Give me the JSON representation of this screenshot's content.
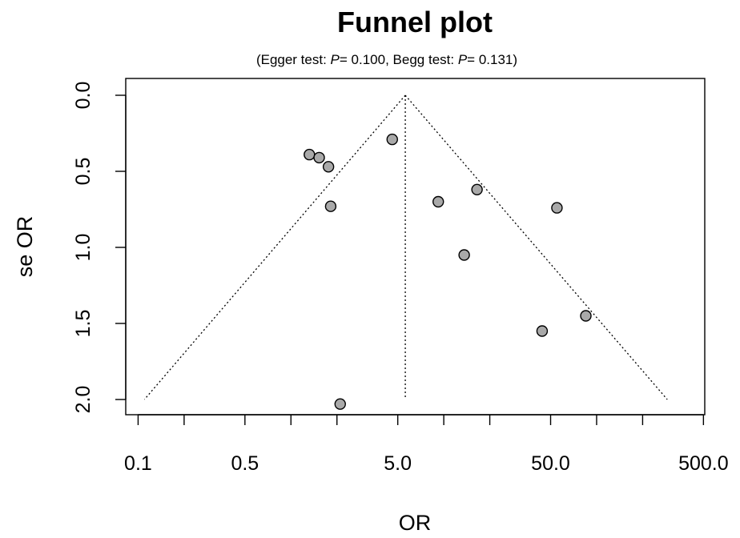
{
  "chart_data": {
    "type": "scatter",
    "title": "Funnel plot",
    "subtitle": {
      "prefix": "(Egger test: ",
      "p1_label": "P",
      "p1_value": "= 0.100",
      "middle": ", Begg test: ",
      "p2_label": "P",
      "p2_value": "= 0.131",
      "suffix": ")"
    },
    "xlabel": "OR",
    "ylabel": "se OR",
    "x_scale": "log",
    "xlim": [
      0.083,
      510
    ],
    "ylim": [
      0.0,
      2.1
    ],
    "y_reversed": true,
    "x_ticks": [
      0.1,
      0.2,
      0.5,
      1,
      2,
      5,
      10,
      20,
      50,
      100,
      200,
      500
    ],
    "x_tick_labels": [
      {
        "value": 0.1,
        "label": "0.1"
      },
      {
        "value": 0.5,
        "label": "0.5"
      },
      {
        "value": 5,
        "label": "5.0"
      },
      {
        "value": 50,
        "label": "50.0"
      },
      {
        "value": 500,
        "label": "500.0"
      }
    ],
    "y_ticks": [
      {
        "value": 0.0,
        "label": "0.0"
      },
      {
        "value": 0.5,
        "label": "0.5"
      },
      {
        "value": 1.0,
        "label": "1.0"
      },
      {
        "value": 1.5,
        "label": "1.5"
      },
      {
        "value": 2.0,
        "label": "2.0"
      }
    ],
    "pooled_estimate": 5.6,
    "funnel_se_max": 2.0,
    "funnel_lines": [
      {
        "from": [
          5.6,
          0.0
        ],
        "to": [
          0.11,
          2.0
        ]
      },
      {
        "from": [
          5.6,
          0.0
        ],
        "to": [
          290,
          2.0
        ]
      }
    ],
    "vertical_line": {
      "from": [
        5.6,
        0.0
      ],
      "to": [
        5.6,
        2.0
      ]
    },
    "points": [
      {
        "x": 1.32,
        "y": 0.39
      },
      {
        "x": 1.53,
        "y": 0.41
      },
      {
        "x": 1.76,
        "y": 0.47
      },
      {
        "x": 1.82,
        "y": 0.73
      },
      {
        "x": 4.6,
        "y": 0.29
      },
      {
        "x": 9.2,
        "y": 0.7
      },
      {
        "x": 16.5,
        "y": 0.62
      },
      {
        "x": 13.6,
        "y": 1.05
      },
      {
        "x": 55.0,
        "y": 0.74
      },
      {
        "x": 44.0,
        "y": 1.55
      },
      {
        "x": 85.0,
        "y": 1.45
      },
      {
        "x": 2.1,
        "y": 2.03
      }
    ],
    "grid": false,
    "legend": "none",
    "point_fill": "#a9a9a9",
    "point_stroke": "#000000"
  }
}
